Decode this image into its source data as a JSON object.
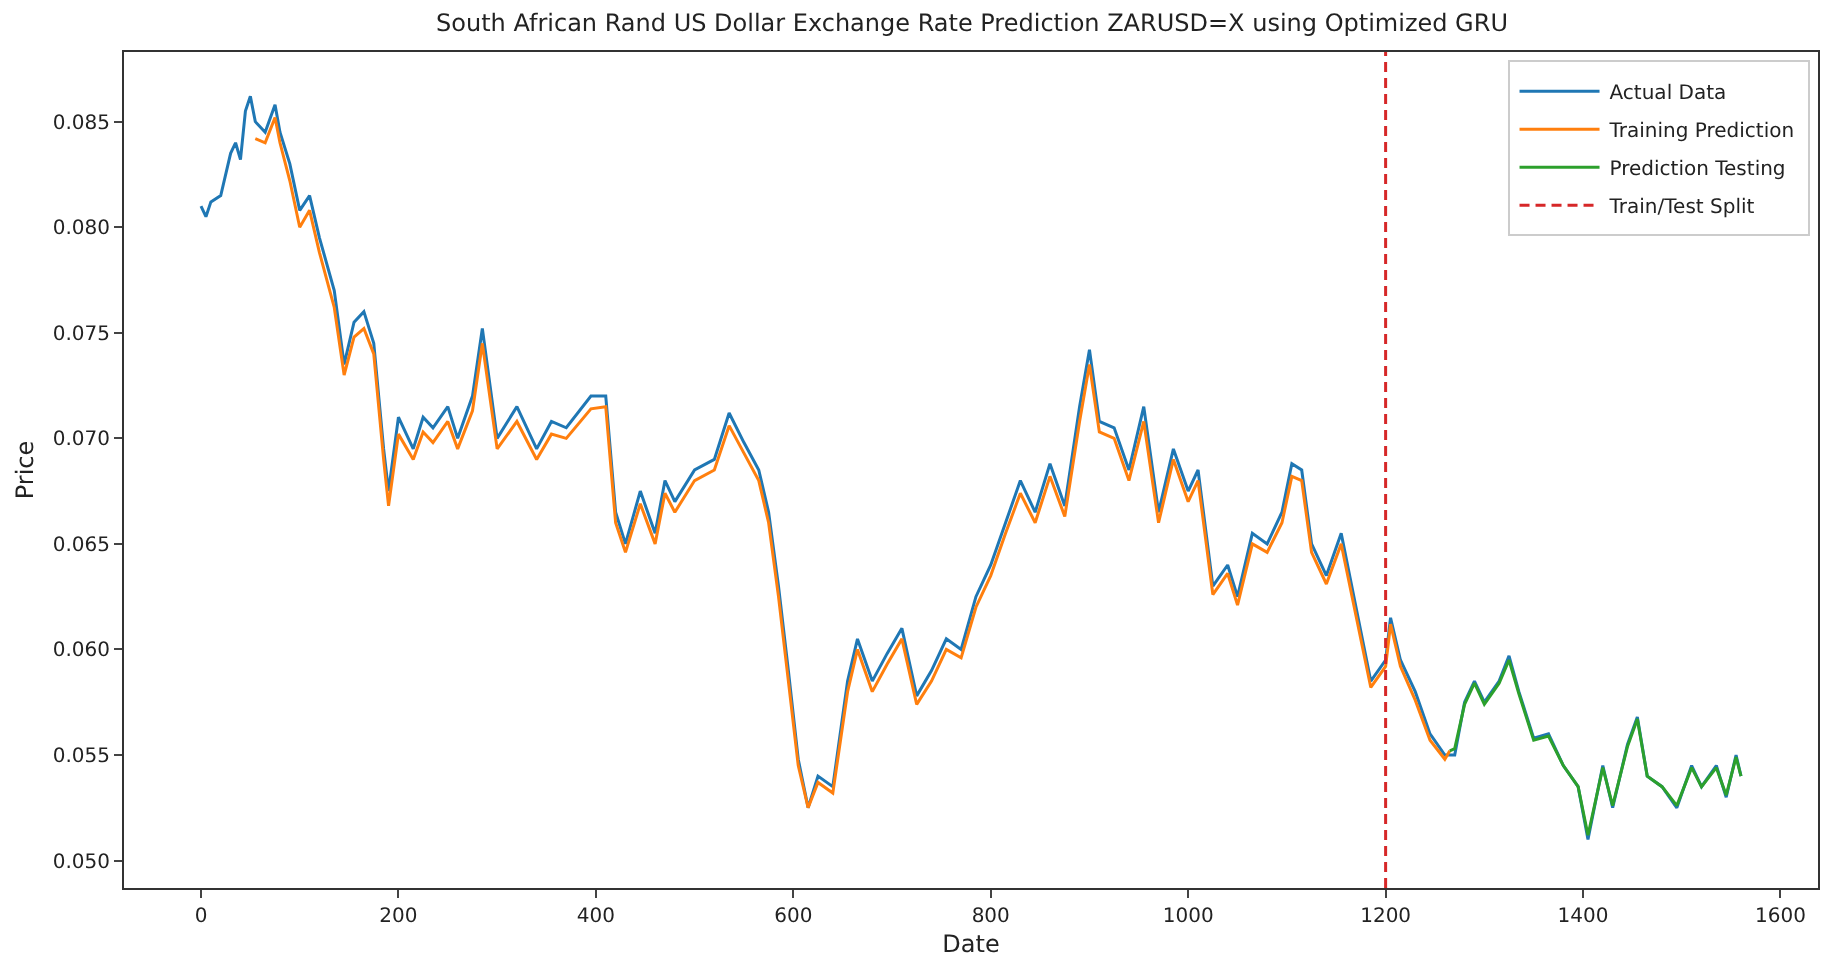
{
  "chart_data": {
    "type": "line",
    "title": "South African Rand US Dollar Exchange Rate Prediction ZARUSD=X using Optimized GRU",
    "xlabel": "Date",
    "ylabel": "Price",
    "xlim": [
      -78,
      1638
    ],
    "ylim": [
      0.0487,
      0.0883
    ],
    "xticks": [
      0,
      200,
      400,
      600,
      800,
      1000,
      1200,
      1400,
      1600
    ],
    "yticks": [
      {
        "value": 0.05,
        "label": "0.050"
      },
      {
        "value": 0.055,
        "label": "0.055"
      },
      {
        "value": 0.06,
        "label": "0.060"
      },
      {
        "value": 0.065,
        "label": "0.065"
      },
      {
        "value": 0.07,
        "label": "0.070"
      },
      {
        "value": 0.075,
        "label": "0.075"
      },
      {
        "value": 0.08,
        "label": "0.080"
      },
      {
        "value": 0.085,
        "label": "0.085"
      }
    ],
    "grid": false,
    "legend": "top right",
    "line_style": "solid",
    "marker": "none",
    "series": [
      {
        "name": "Actual Data",
        "color": "#1f77b4",
        "x": [
          0,
          5,
          10,
          20,
          30,
          35,
          40,
          45,
          50,
          55,
          65,
          75,
          80,
          90,
          100,
          110,
          120,
          135,
          145,
          155,
          165,
          175,
          185,
          190,
          200,
          215,
          225,
          235,
          250,
          260,
          275,
          285,
          300,
          320,
          340,
          355,
          370,
          395,
          410,
          420,
          430,
          445,
          460,
          470,
          480,
          500,
          520,
          535,
          550,
          565,
          575,
          585,
          595,
          605,
          615,
          625,
          640,
          655,
          665,
          680,
          695,
          710,
          725,
          740,
          755,
          770,
          785,
          800,
          815,
          830,
          845,
          860,
          875,
          890,
          900,
          910,
          925,
          940,
          955,
          970,
          985,
          1000,
          1010,
          1025,
          1040,
          1050,
          1065,
          1080,
          1095,
          1105,
          1115,
          1125,
          1140,
          1155,
          1170,
          1185,
          1200,
          1205,
          1215,
          1230,
          1245,
          1260,
          1270,
          1280,
          1290,
          1300,
          1315,
          1325,
          1335,
          1350,
          1365,
          1380,
          1395,
          1405,
          1420,
          1430,
          1445,
          1455,
          1465,
          1480,
          1495,
          1510,
          1520,
          1535,
          1545,
          1555,
          1560
        ],
        "values": [
          0.081,
          0.0805,
          0.0812,
          0.0815,
          0.0835,
          0.084,
          0.0832,
          0.0855,
          0.0862,
          0.085,
          0.0845,
          0.0858,
          0.0845,
          0.083,
          0.0808,
          0.0815,
          0.0795,
          0.077,
          0.0735,
          0.0755,
          0.076,
          0.0745,
          0.0695,
          0.0675,
          0.071,
          0.0695,
          0.071,
          0.0705,
          0.0715,
          0.07,
          0.072,
          0.0752,
          0.07,
          0.0715,
          0.0695,
          0.0708,
          0.0705,
          0.072,
          0.072,
          0.0665,
          0.065,
          0.0675,
          0.0655,
          0.068,
          0.067,
          0.0685,
          0.069,
          0.0712,
          0.0698,
          0.0685,
          0.0665,
          0.063,
          0.059,
          0.0548,
          0.0525,
          0.054,
          0.0535,
          0.0585,
          0.0605,
          0.0585,
          0.0598,
          0.061,
          0.0578,
          0.059,
          0.0605,
          0.06,
          0.0625,
          0.064,
          0.066,
          0.068,
          0.0665,
          0.0688,
          0.0668,
          0.0715,
          0.0742,
          0.0708,
          0.0705,
          0.0685,
          0.0715,
          0.0665,
          0.0695,
          0.0675,
          0.0685,
          0.063,
          0.064,
          0.0625,
          0.0655,
          0.065,
          0.0665,
          0.0688,
          0.0685,
          0.065,
          0.0635,
          0.0655,
          0.062,
          0.0585,
          0.0595,
          0.0615,
          0.0595,
          0.058,
          0.056,
          0.055,
          0.055,
          0.0575,
          0.0585,
          0.0575,
          0.0585,
          0.0597,
          0.058,
          0.0558,
          0.056,
          0.0545,
          0.0535,
          0.051,
          0.0545,
          0.0525,
          0.0555,
          0.0568,
          0.054,
          0.0535,
          0.0525,
          0.0545,
          0.0535,
          0.0545,
          0.053,
          0.055,
          0.054
        ]
      },
      {
        "name": "Training Prediction",
        "color": "#ff7f0e",
        "x": [
          55,
          65,
          75,
          80,
          90,
          100,
          110,
          120,
          135,
          145,
          155,
          165,
          175,
          185,
          190,
          200,
          215,
          225,
          235,
          250,
          260,
          275,
          285,
          300,
          320,
          340,
          355,
          370,
          395,
          410,
          420,
          430,
          445,
          460,
          470,
          480,
          500,
          520,
          535,
          550,
          565,
          575,
          585,
          595,
          605,
          615,
          625,
          640,
          655,
          665,
          680,
          695,
          710,
          725,
          740,
          755,
          770,
          785,
          800,
          815,
          830,
          845,
          860,
          875,
          890,
          900,
          910,
          925,
          940,
          955,
          970,
          985,
          1000,
          1010,
          1025,
          1040,
          1050,
          1065,
          1080,
          1095,
          1105,
          1115,
          1125,
          1140,
          1155,
          1170,
          1185,
          1200,
          1205,
          1215,
          1230,
          1245,
          1260,
          1265
        ],
        "values": [
          0.0842,
          0.084,
          0.0852,
          0.084,
          0.0822,
          0.08,
          0.0808,
          0.0788,
          0.0762,
          0.073,
          0.0748,
          0.0752,
          0.074,
          0.069,
          0.0668,
          0.0702,
          0.069,
          0.0703,
          0.0698,
          0.0708,
          0.0695,
          0.0713,
          0.0745,
          0.0695,
          0.0708,
          0.069,
          0.0702,
          0.07,
          0.0714,
          0.0715,
          0.066,
          0.0646,
          0.0669,
          0.065,
          0.0674,
          0.0665,
          0.068,
          0.0685,
          0.0706,
          0.0693,
          0.068,
          0.066,
          0.0625,
          0.0585,
          0.0545,
          0.0525,
          0.0537,
          0.0532,
          0.058,
          0.06,
          0.058,
          0.0593,
          0.0605,
          0.0574,
          0.0585,
          0.06,
          0.0596,
          0.062,
          0.0635,
          0.0655,
          0.0674,
          0.066,
          0.0682,
          0.0663,
          0.0708,
          0.0735,
          0.0703,
          0.07,
          0.068,
          0.0708,
          0.066,
          0.069,
          0.067,
          0.068,
          0.0626,
          0.0636,
          0.0621,
          0.065,
          0.0646,
          0.066,
          0.0682,
          0.068,
          0.0646,
          0.0631,
          0.065,
          0.0616,
          0.0582,
          0.0592,
          0.0612,
          0.0592,
          0.0576,
          0.0557,
          0.0548,
          0.0552
        ]
      },
      {
        "name": "Prediction Testing",
        "color": "#2ca02c",
        "x": [
          1265,
          1270,
          1280,
          1290,
          1300,
          1315,
          1325,
          1335,
          1350,
          1365,
          1380,
          1395,
          1405,
          1420,
          1430,
          1445,
          1455,
          1465,
          1480,
          1495,
          1510,
          1520,
          1535,
          1545,
          1555,
          1560
        ],
        "values": [
          0.0552,
          0.0553,
          0.0574,
          0.0584,
          0.0574,
          0.0584,
          0.0595,
          0.0579,
          0.0557,
          0.0559,
          0.0545,
          0.0535,
          0.0512,
          0.0544,
          0.0526,
          0.0554,
          0.0567,
          0.054,
          0.0535,
          0.0526,
          0.0544,
          0.0535,
          0.0544,
          0.0531,
          0.0549,
          0.054
        ]
      },
      {
        "name": "Train/Test Split",
        "color": "#d62728",
        "line_style": "dashed",
        "x": [
          1200,
          1200
        ],
        "values": [
          0.0487,
          0.0883
        ]
      }
    ]
  }
}
